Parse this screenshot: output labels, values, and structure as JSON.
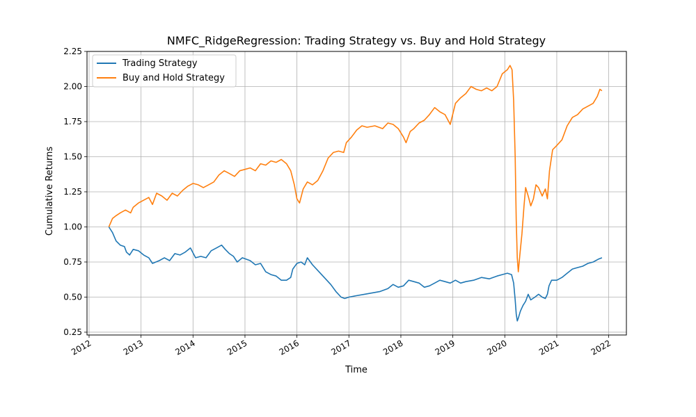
{
  "chart_data": {
    "type": "line",
    "title": "NMFC_RidgeRegression: Trading Strategy vs. Buy and Hold Strategy",
    "xlabel": "Time",
    "ylabel": "Cumulative Returns",
    "xlim": [
      2011.96,
      2022.34
    ],
    "ylim": [
      0.23,
      2.25
    ],
    "x_ticks": [
      2012,
      2013,
      2014,
      2015,
      2016,
      2017,
      2018,
      2019,
      2020,
      2021,
      2022
    ],
    "x_tick_labels": [
      "2012",
      "2013",
      "2014",
      "2015",
      "2016",
      "2017",
      "2018",
      "2019",
      "2020",
      "2021",
      "2022"
    ],
    "y_ticks": [
      0.25,
      0.5,
      0.75,
      1.0,
      1.25,
      1.5,
      1.75,
      2.0,
      2.25
    ],
    "y_tick_labels": [
      "0.25",
      "0.50",
      "0.75",
      "1.00",
      "1.25",
      "1.50",
      "1.75",
      "2.00",
      "2.25"
    ],
    "grid": true,
    "legend_position": "top-left",
    "series": [
      {
        "name": "Trading Strategy",
        "color": "#1f77b4",
        "points": [
          [
            2012.38,
            1.0
          ],
          [
            2012.45,
            0.96
          ],
          [
            2012.52,
            0.9
          ],
          [
            2012.6,
            0.87
          ],
          [
            2012.68,
            0.86
          ],
          [
            2012.72,
            0.82
          ],
          [
            2012.78,
            0.8
          ],
          [
            2012.85,
            0.84
          ],
          [
            2012.95,
            0.83
          ],
          [
            2013.05,
            0.8
          ],
          [
            2013.15,
            0.78
          ],
          [
            2013.22,
            0.74
          ],
          [
            2013.35,
            0.76
          ],
          [
            2013.45,
            0.78
          ],
          [
            2013.55,
            0.76
          ],
          [
            2013.65,
            0.81
          ],
          [
            2013.75,
            0.8
          ],
          [
            2013.85,
            0.82
          ],
          [
            2013.95,
            0.85
          ],
          [
            2014.05,
            0.78
          ],
          [
            2014.15,
            0.79
          ],
          [
            2014.25,
            0.78
          ],
          [
            2014.35,
            0.83
          ],
          [
            2014.45,
            0.85
          ],
          [
            2014.55,
            0.87
          ],
          [
            2014.62,
            0.84
          ],
          [
            2014.7,
            0.81
          ],
          [
            2014.78,
            0.79
          ],
          [
            2014.85,
            0.75
          ],
          [
            2014.95,
            0.78
          ],
          [
            2015.1,
            0.76
          ],
          [
            2015.2,
            0.73
          ],
          [
            2015.3,
            0.74
          ],
          [
            2015.4,
            0.68
          ],
          [
            2015.5,
            0.66
          ],
          [
            2015.6,
            0.65
          ],
          [
            2015.7,
            0.62
          ],
          [
            2015.8,
            0.62
          ],
          [
            2015.88,
            0.64
          ],
          [
            2015.92,
            0.7
          ],
          [
            2016.0,
            0.74
          ],
          [
            2016.08,
            0.75
          ],
          [
            2016.15,
            0.73
          ],
          [
            2016.2,
            0.78
          ],
          [
            2016.3,
            0.73
          ],
          [
            2016.45,
            0.67
          ],
          [
            2016.55,
            0.63
          ],
          [
            2016.65,
            0.59
          ],
          [
            2016.75,
            0.54
          ],
          [
            2016.85,
            0.5
          ],
          [
            2016.92,
            0.49
          ],
          [
            2017.0,
            0.5
          ],
          [
            2017.15,
            0.51
          ],
          [
            2017.3,
            0.52
          ],
          [
            2017.45,
            0.53
          ],
          [
            2017.6,
            0.54
          ],
          [
            2017.75,
            0.56
          ],
          [
            2017.85,
            0.59
          ],
          [
            2017.95,
            0.57
          ],
          [
            2018.05,
            0.58
          ],
          [
            2018.15,
            0.62
          ],
          [
            2018.25,
            0.61
          ],
          [
            2018.35,
            0.6
          ],
          [
            2018.45,
            0.57
          ],
          [
            2018.55,
            0.58
          ],
          [
            2018.65,
            0.6
          ],
          [
            2018.75,
            0.62
          ],
          [
            2018.85,
            0.61
          ],
          [
            2018.95,
            0.6
          ],
          [
            2019.05,
            0.62
          ],
          [
            2019.15,
            0.6
          ],
          [
            2019.25,
            0.61
          ],
          [
            2019.4,
            0.62
          ],
          [
            2019.55,
            0.64
          ],
          [
            2019.7,
            0.63
          ],
          [
            2019.85,
            0.65
          ],
          [
            2019.95,
            0.66
          ],
          [
            2020.05,
            0.67
          ],
          [
            2020.13,
            0.66
          ],
          [
            2020.17,
            0.6
          ],
          [
            2020.2,
            0.48
          ],
          [
            2020.22,
            0.38
          ],
          [
            2020.24,
            0.33
          ],
          [
            2020.26,
            0.35
          ],
          [
            2020.3,
            0.4
          ],
          [
            2020.35,
            0.44
          ],
          [
            2020.4,
            0.47
          ],
          [
            2020.45,
            0.52
          ],
          [
            2020.5,
            0.48
          ],
          [
            2020.58,
            0.5
          ],
          [
            2020.65,
            0.52
          ],
          [
            2020.72,
            0.5
          ],
          [
            2020.78,
            0.49
          ],
          [
            2020.82,
            0.52
          ],
          [
            2020.85,
            0.58
          ],
          [
            2020.9,
            0.62
          ],
          [
            2021.0,
            0.62
          ],
          [
            2021.1,
            0.64
          ],
          [
            2021.2,
            0.67
          ],
          [
            2021.3,
            0.7
          ],
          [
            2021.4,
            0.71
          ],
          [
            2021.5,
            0.72
          ],
          [
            2021.6,
            0.74
          ],
          [
            2021.7,
            0.75
          ],
          [
            2021.8,
            0.77
          ],
          [
            2021.87,
            0.78
          ]
        ]
      },
      {
        "name": "Buy and Hold Strategy",
        "color": "#ff7f0e",
        "points": [
          [
            2012.38,
            1.0
          ],
          [
            2012.45,
            1.06
          ],
          [
            2012.52,
            1.08
          ],
          [
            2012.6,
            1.1
          ],
          [
            2012.7,
            1.12
          ],
          [
            2012.8,
            1.1
          ],
          [
            2012.85,
            1.14
          ],
          [
            2012.95,
            1.17
          ],
          [
            2013.05,
            1.19
          ],
          [
            2013.15,
            1.21
          ],
          [
            2013.22,
            1.16
          ],
          [
            2013.3,
            1.24
          ],
          [
            2013.4,
            1.22
          ],
          [
            2013.5,
            1.19
          ],
          [
            2013.6,
            1.24
          ],
          [
            2013.7,
            1.22
          ],
          [
            2013.8,
            1.26
          ],
          [
            2013.9,
            1.29
          ],
          [
            2014.0,
            1.31
          ],
          [
            2014.1,
            1.3
          ],
          [
            2014.2,
            1.28
          ],
          [
            2014.3,
            1.3
          ],
          [
            2014.4,
            1.32
          ],
          [
            2014.5,
            1.37
          ],
          [
            2014.6,
            1.4
          ],
          [
            2014.7,
            1.38
          ],
          [
            2014.8,
            1.36
          ],
          [
            2014.9,
            1.4
          ],
          [
            2015.0,
            1.41
          ],
          [
            2015.1,
            1.42
          ],
          [
            2015.2,
            1.4
          ],
          [
            2015.3,
            1.45
          ],
          [
            2015.4,
            1.44
          ],
          [
            2015.5,
            1.47
          ],
          [
            2015.6,
            1.46
          ],
          [
            2015.7,
            1.48
          ],
          [
            2015.8,
            1.45
          ],
          [
            2015.88,
            1.4
          ],
          [
            2015.95,
            1.3
          ],
          [
            2016.0,
            1.2
          ],
          [
            2016.05,
            1.17
          ],
          [
            2016.12,
            1.27
          ],
          [
            2016.2,
            1.32
          ],
          [
            2016.3,
            1.3
          ],
          [
            2016.4,
            1.33
          ],
          [
            2016.5,
            1.4
          ],
          [
            2016.6,
            1.49
          ],
          [
            2016.7,
            1.53
          ],
          [
            2016.8,
            1.54
          ],
          [
            2016.9,
            1.53
          ],
          [
            2016.95,
            1.6
          ],
          [
            2017.05,
            1.64
          ],
          [
            2017.15,
            1.69
          ],
          [
            2017.25,
            1.72
          ],
          [
            2017.35,
            1.71
          ],
          [
            2017.5,
            1.72
          ],
          [
            2017.65,
            1.7
          ],
          [
            2017.75,
            1.74
          ],
          [
            2017.85,
            1.73
          ],
          [
            2017.95,
            1.7
          ],
          [
            2018.05,
            1.64
          ],
          [
            2018.1,
            1.6
          ],
          [
            2018.18,
            1.68
          ],
          [
            2018.25,
            1.7
          ],
          [
            2018.35,
            1.74
          ],
          [
            2018.45,
            1.76
          ],
          [
            2018.55,
            1.8
          ],
          [
            2018.65,
            1.85
          ],
          [
            2018.75,
            1.82
          ],
          [
            2018.85,
            1.8
          ],
          [
            2018.95,
            1.73
          ],
          [
            2019.05,
            1.88
          ],
          [
            2019.15,
            1.92
          ],
          [
            2019.25,
            1.95
          ],
          [
            2019.35,
            2.0
          ],
          [
            2019.45,
            1.98
          ],
          [
            2019.55,
            1.97
          ],
          [
            2019.65,
            1.99
          ],
          [
            2019.75,
            1.97
          ],
          [
            2019.85,
            2.0
          ],
          [
            2019.95,
            2.09
          ],
          [
            2020.05,
            2.12
          ],
          [
            2020.1,
            2.15
          ],
          [
            2020.14,
            2.12
          ],
          [
            2020.17,
            1.9
          ],
          [
            2020.2,
            1.5
          ],
          [
            2020.22,
            1.05
          ],
          [
            2020.24,
            0.78
          ],
          [
            2020.26,
            0.68
          ],
          [
            2020.29,
            0.8
          ],
          [
            2020.33,
            0.95
          ],
          [
            2020.37,
            1.15
          ],
          [
            2020.4,
            1.28
          ],
          [
            2020.45,
            1.22
          ],
          [
            2020.5,
            1.15
          ],
          [
            2020.55,
            1.2
          ],
          [
            2020.6,
            1.3
          ],
          [
            2020.65,
            1.28
          ],
          [
            2020.72,
            1.22
          ],
          [
            2020.78,
            1.27
          ],
          [
            2020.82,
            1.2
          ],
          [
            2020.86,
            1.4
          ],
          [
            2020.92,
            1.55
          ],
          [
            2021.0,
            1.58
          ],
          [
            2021.1,
            1.62
          ],
          [
            2021.2,
            1.72
          ],
          [
            2021.3,
            1.78
          ],
          [
            2021.4,
            1.8
          ],
          [
            2021.5,
            1.84
          ],
          [
            2021.6,
            1.86
          ],
          [
            2021.7,
            1.88
          ],
          [
            2021.78,
            1.93
          ],
          [
            2021.83,
            1.98
          ],
          [
            2021.87,
            1.97
          ]
        ]
      }
    ]
  }
}
